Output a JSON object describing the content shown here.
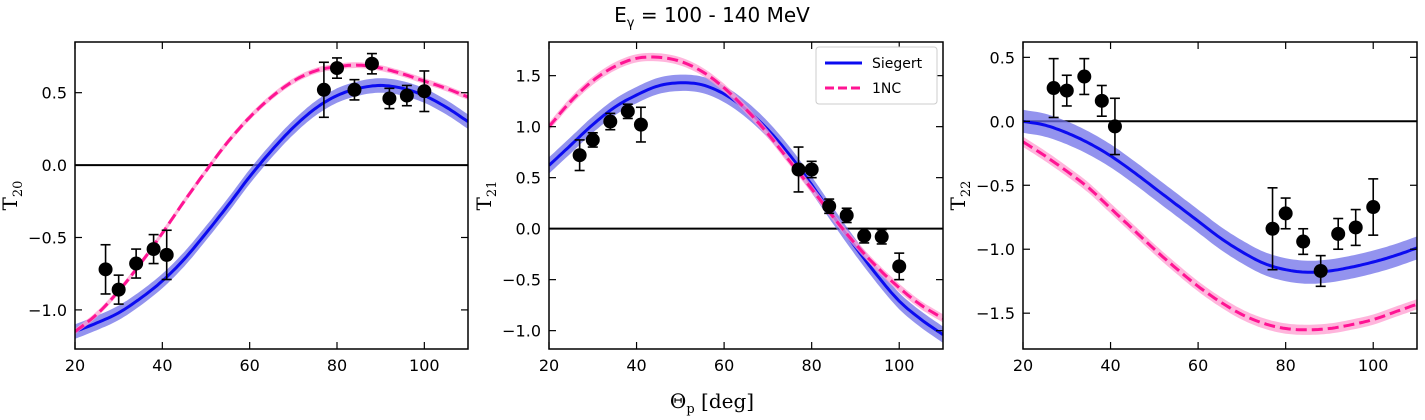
{
  "figure": {
    "title_main": "E",
    "title_sub": "γ",
    "title_rest": " = 100 - 140 MeV",
    "xlabel_main": "Θ",
    "xlabel_sub": "p",
    "xlabel_rest": " [deg]"
  },
  "colors": {
    "siegert": "#0b0bf0",
    "siegert_band": "#6f6fe8",
    "nc": "#ff1493",
    "nc_band": "#ff9cd0",
    "data": "#000000"
  },
  "chart_data": [
    {
      "type": "line",
      "ylabel_main": "T",
      "ylabel_sub": "20",
      "xlim": [
        20,
        110
      ],
      "ylim": [
        -1.27,
        0.85
      ],
      "xticks": [
        20,
        40,
        60,
        80,
        100
      ],
      "yticks": [
        -1.0,
        -0.5,
        0.0,
        0.5
      ],
      "ytick_labels": [
        "−1.0",
        "−0.5",
        "0.0",
        "0.5"
      ],
      "series": [
        {
          "key": "siegert",
          "x": [
            20,
            25,
            30,
            35,
            40,
            45,
            50,
            55,
            60,
            65,
            70,
            75,
            80,
            85,
            90,
            95,
            100,
            105,
            110
          ],
          "y": [
            -1.15,
            -1.09,
            -1.02,
            -0.92,
            -0.8,
            -0.65,
            -0.47,
            -0.28,
            -0.08,
            0.1,
            0.26,
            0.39,
            0.48,
            0.53,
            0.55,
            0.53,
            0.48,
            0.4,
            0.3
          ],
          "band": 0.05
        },
        {
          "key": "nc",
          "x": [
            20,
            25,
            30,
            35,
            40,
            45,
            50,
            55,
            60,
            65,
            70,
            75,
            80,
            85,
            90,
            95,
            100,
            105,
            110
          ],
          "y": [
            -1.15,
            -1.03,
            -0.87,
            -0.68,
            -0.47,
            -0.25,
            -0.04,
            0.16,
            0.33,
            0.47,
            0.58,
            0.65,
            0.68,
            0.69,
            0.67,
            0.63,
            0.58,
            0.53,
            0.47
          ],
          "band": 0.02
        }
      ],
      "points": {
        "x": [
          27,
          30,
          34,
          38,
          41,
          77,
          80,
          84,
          88,
          92,
          96,
          100
        ],
        "y": [
          -0.72,
          -0.86,
          -0.68,
          -0.58,
          -0.62,
          0.52,
          0.67,
          0.52,
          0.7,
          0.46,
          0.48,
          0.51
        ],
        "err": [
          0.17,
          0.1,
          0.1,
          0.1,
          0.17,
          0.19,
          0.07,
          0.07,
          0.07,
          0.07,
          0.07,
          0.14
        ]
      }
    },
    {
      "type": "line",
      "ylabel_main": "T",
      "ylabel_sub": "21",
      "xlim": [
        20,
        110
      ],
      "ylim": [
        -1.18,
        1.83
      ],
      "xticks": [
        20,
        40,
        60,
        80,
        100
      ],
      "yticks": [
        -1.0,
        -0.5,
        0.0,
        0.5,
        1.0,
        1.5
      ],
      "ytick_labels": [
        "−1.0",
        "−0.5",
        "0.0",
        "0.5",
        "1.0",
        "1.5"
      ],
      "legend": {
        "position": "upper-right",
        "entries": [
          "Siegert",
          "1NC"
        ]
      },
      "series": [
        {
          "key": "siegert",
          "x": [
            20,
            25,
            30,
            35,
            40,
            45,
            50,
            55,
            60,
            65,
            70,
            75,
            80,
            85,
            90,
            95,
            100,
            105,
            110
          ],
          "y": [
            0.62,
            0.82,
            1.02,
            1.19,
            1.31,
            1.4,
            1.43,
            1.41,
            1.32,
            1.17,
            0.97,
            0.72,
            0.43,
            0.12,
            -0.18,
            -0.46,
            -0.71,
            -0.89,
            -1.04
          ],
          "band": 0.08
        },
        {
          "key": "nc",
          "x": [
            20,
            25,
            30,
            35,
            40,
            45,
            50,
            55,
            60,
            65,
            70,
            75,
            80,
            85,
            90,
            95,
            100,
            105,
            110
          ],
          "y": [
            1.0,
            1.25,
            1.45,
            1.59,
            1.67,
            1.68,
            1.64,
            1.54,
            1.38,
            1.17,
            0.93,
            0.66,
            0.39,
            0.11,
            -0.15,
            -0.38,
            -0.58,
            -0.75,
            -0.88
          ],
          "band": 0.04
        }
      ],
      "points": {
        "x": [
          27,
          30,
          34,
          38,
          41,
          77,
          80,
          84,
          88,
          92,
          96,
          100
        ],
        "y": [
          0.72,
          0.87,
          1.05,
          1.15,
          1.02,
          0.58,
          0.58,
          0.22,
          0.13,
          -0.07,
          -0.08,
          -0.37
        ],
        "err": [
          0.15,
          0.07,
          0.08,
          0.07,
          0.17,
          0.22,
          0.08,
          0.07,
          0.07,
          0.07,
          0.07,
          0.13
        ]
      }
    },
    {
      "type": "line",
      "ylabel_main": "T",
      "ylabel_sub": "22",
      "xlim": [
        20,
        110
      ],
      "ylim": [
        -1.78,
        0.62
      ],
      "xticks": [
        20,
        40,
        60,
        80,
        100
      ],
      "yticks": [
        -1.5,
        -1.0,
        -0.5,
        0.0,
        0.5
      ],
      "ytick_labels": [
        "−1.5",
        "−1.0",
        "−0.5",
        "0.0",
        "0.5"
      ],
      "series": [
        {
          "key": "siegert",
          "x": [
            20,
            25,
            30,
            35,
            40,
            45,
            50,
            55,
            60,
            65,
            70,
            75,
            80,
            85,
            90,
            95,
            100,
            105,
            110
          ],
          "y": [
            0.0,
            -0.03,
            -0.09,
            -0.17,
            -0.27,
            -0.39,
            -0.52,
            -0.65,
            -0.78,
            -0.91,
            -1.02,
            -1.11,
            -1.16,
            -1.18,
            -1.17,
            -1.14,
            -1.1,
            -1.05,
            -0.99
          ],
          "band": 0.09
        },
        {
          "key": "nc",
          "x": [
            20,
            25,
            30,
            35,
            40,
            45,
            50,
            55,
            60,
            65,
            70,
            75,
            80,
            85,
            90,
            95,
            100,
            105,
            110
          ],
          "y": [
            -0.16,
            -0.27,
            -0.39,
            -0.52,
            -0.68,
            -0.84,
            -1.0,
            -1.15,
            -1.29,
            -1.41,
            -1.51,
            -1.58,
            -1.62,
            -1.63,
            -1.62,
            -1.59,
            -1.55,
            -1.49,
            -1.43
          ],
          "band": 0.04
        }
      ],
      "points": {
        "x": [
          27,
          30,
          34,
          38,
          41,
          77,
          80,
          84,
          88,
          92,
          96,
          100
        ],
        "y": [
          0.26,
          0.24,
          0.35,
          0.16,
          -0.04,
          -0.84,
          -0.72,
          -0.94,
          -1.17,
          -0.88,
          -0.83,
          -0.67
        ],
        "err": [
          0.23,
          0.12,
          0.14,
          0.12,
          0.22,
          0.32,
          0.12,
          0.1,
          0.12,
          0.12,
          0.14,
          0.22
        ]
      }
    }
  ]
}
